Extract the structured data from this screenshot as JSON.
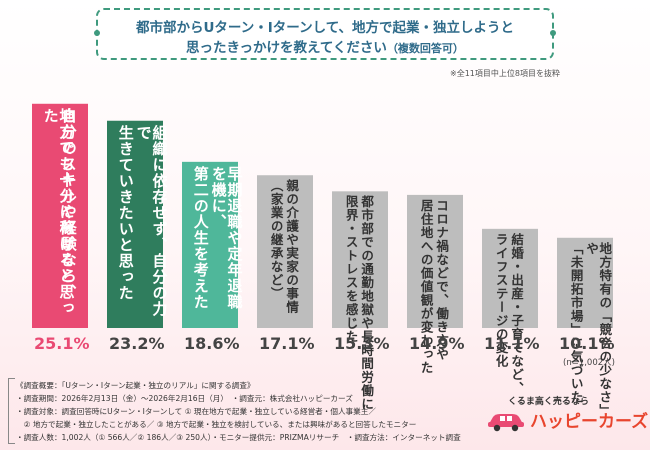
{
  "title_line1": "都市部からUターン・Iターンして、地方で起業・独立しようと",
  "title_line2": "思ったきっかけを教えてください",
  "title_sub": "（複数回答可）",
  "note": "※全11項目中上位8項目を抜粋",
  "colors": {
    "highlight": "#e94a73",
    "second": "#2f7d5d",
    "third": "#4fb79a",
    "other": "#bdbdbd",
    "title": "#2f6b8a",
    "accent": "#e94a73"
  },
  "chart_data": {
    "type": "bar",
    "categories": [
      "地方でも十分に稼げると思った自分のスキルや経験なら、",
      "組織に依存せず、自分の力で生きていきたいと思った",
      "早期退職や定年退職を機に、第二の人生を考えた",
      "親の介護や実家の事情（家業の継承など）",
      "都市部での通勤地獄や長時間労働に限界・ストレスを感じた",
      "コロナ禍などで、働き方や居住地への価値観が変わった",
      "結婚・出産・子育てなど、ライフステージの変化",
      "地方特有の「競合の少なさ」や「未開拓市場」に気づいた"
    ],
    "values": [
      25.1,
      23.2,
      18.6,
      17.1,
      15.3,
      14.9,
      11.1,
      10.1
    ],
    "value_labels": [
      "25.1%",
      "23.2%",
      "18.6%",
      "17.1%",
      "15.3%",
      "14.9%",
      "11.1%",
      "10.1%"
    ],
    "n_label": "(n=1,002人)",
    "ylim": [
      0,
      30
    ]
  },
  "bar_text_columns": [
    [
      "自分のスキルや経験なら、",
      "地方でも十分に稼げると思った"
    ],
    [
      "組織に依存せず、自分の力で",
      "生きていきたいと思った"
    ],
    [
      "早期退職や定年退職を機に、",
      "第二の人生を考えた"
    ],
    [
      "親の介護や実家の事情",
      "（家業の継承など）"
    ],
    [
      "都市部での通勤地獄や長時間労働に",
      "限界・ストレスを感じた"
    ],
    [
      "コロナ禍などで、働き方や",
      "居住地への価値観が変わった"
    ],
    [
      "結婚・出産・子育てなど、",
      "ライフステージの変化"
    ],
    [
      "地方特有の「競合の少なさ」や",
      "「未開拓市場」に気づいた"
    ]
  ],
  "footer": {
    "l1": "《調査概要：「Uターン・Iターン起業・独立のリアル」に関する調査》",
    "l2": "・調査期間：2026年2月13日（金）～2026年2月16日（月）　・調査元：株式会社ハッピーカーズ",
    "l3": "・調査対象：調査回答時にUターン・Iターンして ① 現在地方で起業・独立している経営者・個人事業主／",
    "l4": "　② 地方で起業・独立したことがある／ ③ 地方で起業・独立を検討している、または興味があると回答したモニター",
    "l5": "・調査人数：1,002人（① 566人／② 186人／③ 250人）・モニター提供元：PRIZMAリサーチ　・調査方法：インターネット調査"
  },
  "logo": {
    "tagline": "くるま高く売るなら",
    "name": "ハッピーカーズ"
  }
}
